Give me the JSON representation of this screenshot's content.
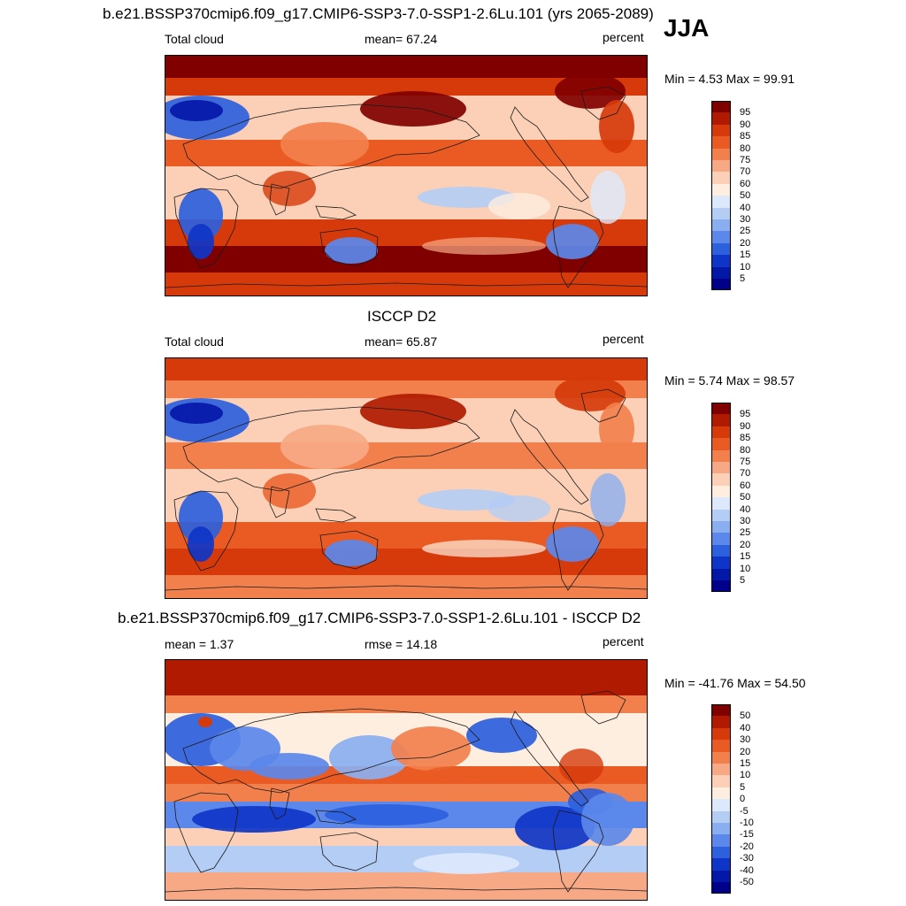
{
  "season": "JJA",
  "panels": [
    {
      "title": "b.e21.BSSP370cmip6.f09_g17.CMIP6-SSP3-7.0-SSP1-2.6Lu.101 (yrs 2065-2089)",
      "left_label": "Total cloud",
      "center_label": "mean=  67.24",
      "right_label": "percent",
      "minmax": "Min =   4.53 Max =  99.91",
      "kind": "abs"
    },
    {
      "title": "ISCCP D2",
      "left_label": "Total cloud",
      "center_label": "mean=  65.87",
      "right_label": "percent",
      "minmax": "Min =   5.74 Max =  98.57",
      "kind": "abs2"
    },
    {
      "title": "b.e21.BSSP370cmip6.f09_g17.CMIP6-SSP3-7.0-SSP1-2.6Lu.101 - ISCCP D2",
      "left_label": "mean =   1.37",
      "center_label": "rmse =  14.18",
      "right_label": "percent",
      "minmax": "Min = -41.76 Max =  54.50",
      "kind": "diff"
    }
  ],
  "colorbars": {
    "abs_levels": [
      "95",
      "90",
      "85",
      "80",
      "75",
      "70",
      "60",
      "50",
      "40",
      "30",
      "25",
      "20",
      "15",
      "10",
      "5"
    ],
    "diff_levels": [
      "50",
      "40",
      "30",
      "20",
      "15",
      "10",
      "5",
      "0",
      "-5",
      "-10",
      "-15",
      "-20",
      "-30",
      "-40",
      "-50"
    ],
    "colors": [
      "#800000",
      "#b01a00",
      "#d63a0a",
      "#ea5a23",
      "#f2804d",
      "#f7a986",
      "#fcd0b6",
      "#fdeee0",
      "#dce8fb",
      "#b4cdf5",
      "#8aaff0",
      "#5b88ea",
      "#2c60dd",
      "#0f35c8",
      "#0418a8",
      "#00008a"
    ]
  },
  "icons": [
    "continent-outline-icon"
  ]
}
